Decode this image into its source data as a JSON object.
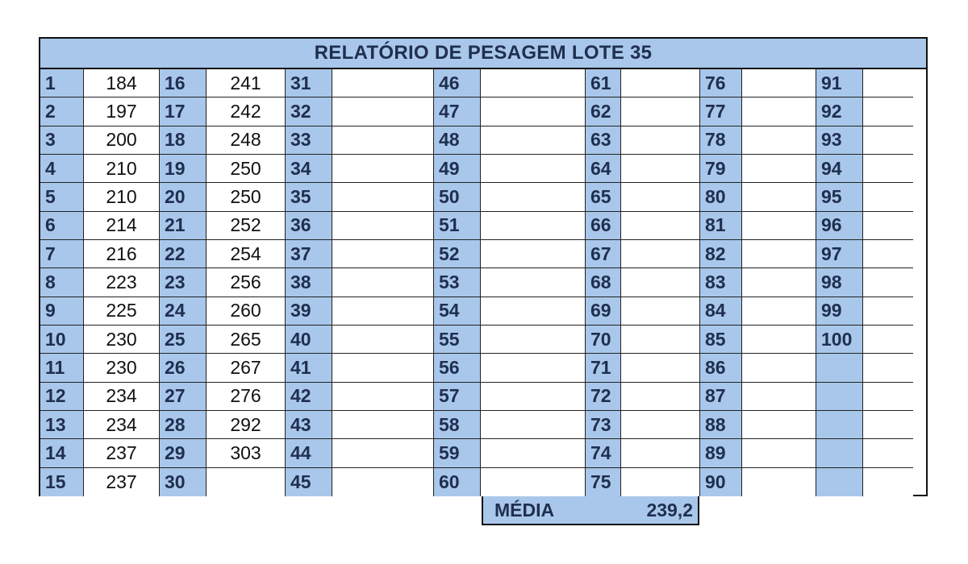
{
  "title": "RELATÓRIO DE PESAGEM LOTE 35",
  "columns": [
    {
      "numbers": [
        "1",
        "2",
        "3",
        "4",
        "5",
        "6",
        "7",
        "8",
        "9",
        "10",
        "11",
        "12",
        "13",
        "14",
        "15"
      ],
      "values": [
        "184",
        "197",
        "200",
        "210",
        "210",
        "214",
        "216",
        "223",
        "225",
        "230",
        "230",
        "234",
        "234",
        "237",
        "237"
      ]
    },
    {
      "numbers": [
        "16",
        "17",
        "18",
        "19",
        "20",
        "21",
        "22",
        "23",
        "24",
        "25",
        "26",
        "27",
        "28",
        "29",
        "30"
      ],
      "values": [
        "241",
        "242",
        "248",
        "250",
        "250",
        "252",
        "254",
        "256",
        "260",
        "265",
        "267",
        "276",
        "292",
        "303",
        ""
      ]
    },
    {
      "numbers": [
        "31",
        "32",
        "33",
        "34",
        "35",
        "36",
        "37",
        "38",
        "39",
        "40",
        "41",
        "42",
        "43",
        "44",
        "45"
      ],
      "values": [
        "",
        "",
        "",
        "",
        "",
        "",
        "",
        "",
        "",
        "",
        "",
        "",
        "",
        "",
        ""
      ]
    },
    {
      "numbers": [
        "46",
        "47",
        "48",
        "49",
        "50",
        "51",
        "52",
        "53",
        "54",
        "55",
        "56",
        "57",
        "58",
        "59",
        "60"
      ],
      "values": [
        "",
        "",
        "",
        "",
        "",
        "",
        "",
        "",
        "",
        "",
        "",
        "",
        "",
        "",
        ""
      ]
    },
    {
      "numbers": [
        "61",
        "62",
        "63",
        "64",
        "65",
        "66",
        "67",
        "68",
        "69",
        "70",
        "71",
        "72",
        "73",
        "74",
        "75"
      ],
      "values": [
        "",
        "",
        "",
        "",
        "",
        "",
        "",
        "",
        "",
        "",
        "",
        "",
        "",
        "",
        ""
      ]
    },
    {
      "numbers": [
        "76",
        "77",
        "78",
        "79",
        "80",
        "81",
        "82",
        "83",
        "84",
        "85",
        "86",
        "87",
        "88",
        "89",
        "90"
      ],
      "values": [
        "",
        "",
        "",
        "",
        "",
        "",
        "",
        "",
        "",
        "",
        "",
        "",
        "",
        "",
        ""
      ]
    },
    {
      "numbers": [
        "91",
        "92",
        "93",
        "94",
        "95",
        "96",
        "97",
        "98",
        "99",
        "100",
        "",
        "",
        "",
        "",
        ""
      ],
      "values": [
        "",
        "",
        "",
        "",
        "",
        "",
        "",
        "",
        "",
        "",
        "",
        "",
        "",
        "",
        ""
      ]
    }
  ],
  "media": {
    "label": "MÉDIA",
    "value": "239,2"
  },
  "colors": {
    "header_blue": "#a9c7ea",
    "text_navy": "#1f2f4f"
  }
}
